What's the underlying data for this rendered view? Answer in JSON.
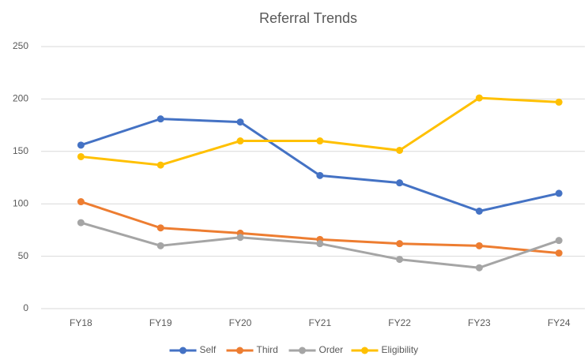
{
  "chart_data": {
    "type": "line",
    "title": "Referral Trends",
    "categories": [
      "FY18",
      "FY19",
      "FY20",
      "FY21",
      "FY22",
      "FY23",
      "FY24"
    ],
    "series": [
      {
        "name": "Self",
        "color": "#4472c4",
        "values": [
          156,
          181,
          178,
          127,
          120,
          93,
          110
        ]
      },
      {
        "name": "Third",
        "color": "#ed7d31",
        "values": [
          102,
          77,
          72,
          66,
          62,
          60,
          53
        ]
      },
      {
        "name": "Order",
        "color": "#a5a5a5",
        "values": [
          82,
          60,
          68,
          62,
          47,
          39,
          65
        ]
      },
      {
        "name": "Eligibility",
        "color": "#ffc000",
        "values": [
          145,
          137,
          160,
          160,
          151,
          201,
          197
        ]
      }
    ],
    "ylim": [
      0,
      250
    ],
    "yticks": [
      0,
      50,
      100,
      150,
      200,
      250
    ],
    "grid": true,
    "legend": "bottom"
  }
}
